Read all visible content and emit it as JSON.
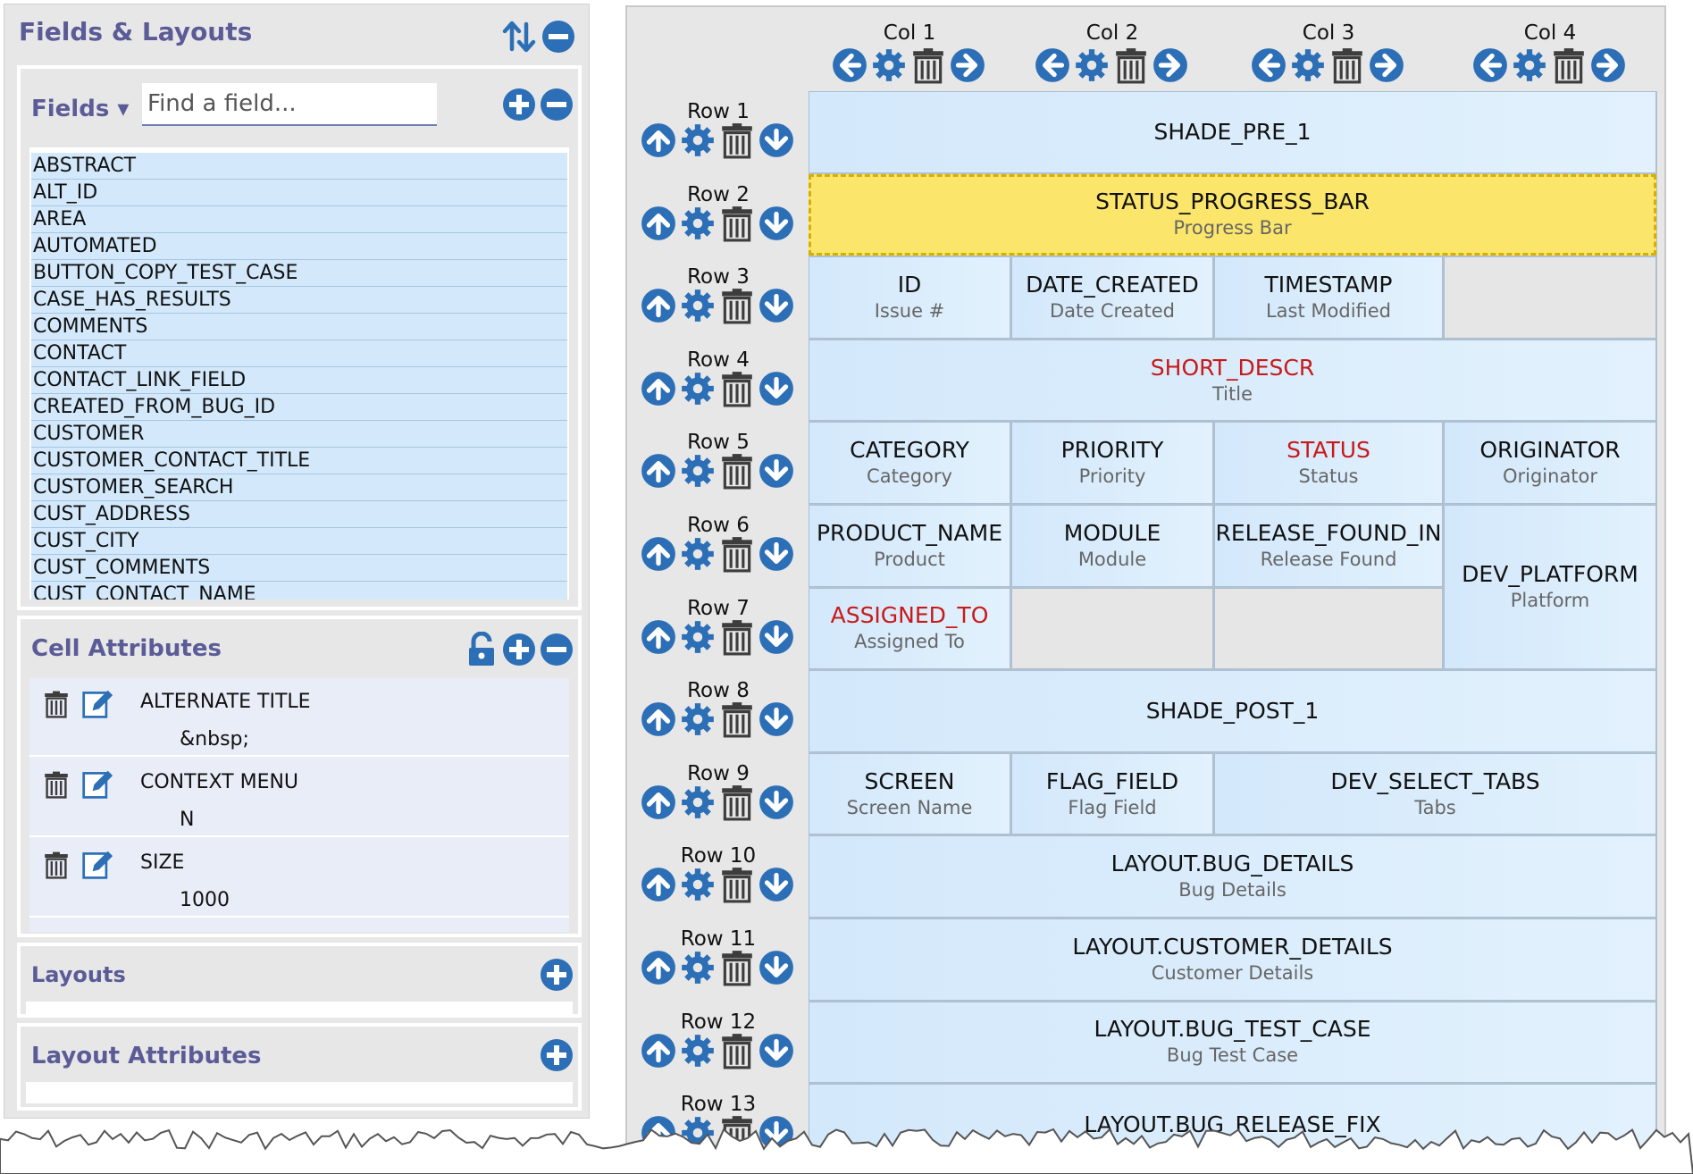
{
  "left_panel": {
    "title": "Fields & Layouts",
    "fields": {
      "dropdown_label": "Fields ▾",
      "search_placeholder": "Find a field...",
      "items": [
        "ABSTRACT",
        "ALT_ID",
        "AREA",
        "AUTOMATED",
        "BUTTON_COPY_TEST_CASE",
        "CASE_HAS_RESULTS",
        "COMMENTS",
        "CONTACT",
        "CONTACT_LINK_FIELD",
        "CREATED_FROM_BUG_ID",
        "CUSTOMER",
        "CUSTOMER_CONTACT_TITLE",
        "CUSTOMER_SEARCH",
        "CUST_ADDRESS",
        "CUST_CITY",
        "CUST_COMMENTS",
        "CUST_CONTACT_NAME"
      ]
    },
    "cell_attributes": {
      "title": "Cell Attributes",
      "items": [
        {
          "name": "ALTERNATE TITLE",
          "value": "&nbsp;"
        },
        {
          "name": "CONTEXT MENU",
          "value": "N"
        },
        {
          "name": "SIZE",
          "value": "1000"
        }
      ]
    },
    "layouts": {
      "title": "Layouts"
    },
    "layout_attributes": {
      "title": "Layout Attributes"
    }
  },
  "grid": {
    "columns": [
      "Col 1",
      "Col 2",
      "Col 3",
      "Col 4"
    ],
    "rows": [
      "Row 1",
      "Row 2",
      "Row 3",
      "Row 4",
      "Row 5",
      "Row 6",
      "Row 7",
      "Row 8",
      "Row 9",
      "Row 10",
      "Row 11",
      "Row 12",
      "Row 13"
    ],
    "cells": [
      {
        "row": 1,
        "col": 1,
        "colspan": 4,
        "rowspan": 1,
        "name": "SHADE_PRE_1",
        "subtitle": ""
      },
      {
        "row": 2,
        "col": 1,
        "colspan": 4,
        "rowspan": 1,
        "name": "STATUS_PROGRESS_BAR",
        "subtitle": "Progress Bar",
        "selected": true
      },
      {
        "row": 3,
        "col": 1,
        "colspan": 1,
        "rowspan": 1,
        "name": "ID",
        "subtitle": "Issue #"
      },
      {
        "row": 3,
        "col": 2,
        "colspan": 1,
        "rowspan": 1,
        "name": "DATE_CREATED",
        "subtitle": "Date Created"
      },
      {
        "row": 3,
        "col": 3,
        "colspan": 1,
        "rowspan": 1,
        "name": "TIMESTAMP",
        "subtitle": "Last Modified"
      },
      {
        "row": 3,
        "col": 4,
        "colspan": 1,
        "rowspan": 1,
        "name": "",
        "subtitle": "",
        "empty": true
      },
      {
        "row": 4,
        "col": 1,
        "colspan": 4,
        "rowspan": 1,
        "name": "SHORT_DESCR",
        "subtitle": "Title",
        "required": true
      },
      {
        "row": 5,
        "col": 1,
        "colspan": 1,
        "rowspan": 1,
        "name": "CATEGORY",
        "subtitle": "Category"
      },
      {
        "row": 5,
        "col": 2,
        "colspan": 1,
        "rowspan": 1,
        "name": "PRIORITY",
        "subtitle": "Priority"
      },
      {
        "row": 5,
        "col": 3,
        "colspan": 1,
        "rowspan": 1,
        "name": "STATUS",
        "subtitle": "Status",
        "required": true
      },
      {
        "row": 5,
        "col": 4,
        "colspan": 1,
        "rowspan": 1,
        "name": "ORIGINATOR",
        "subtitle": "Originator"
      },
      {
        "row": 6,
        "col": 1,
        "colspan": 1,
        "rowspan": 1,
        "name": "PRODUCT_NAME",
        "subtitle": "Product"
      },
      {
        "row": 6,
        "col": 2,
        "colspan": 1,
        "rowspan": 1,
        "name": "MODULE",
        "subtitle": "Module"
      },
      {
        "row": 6,
        "col": 3,
        "colspan": 1,
        "rowspan": 1,
        "name": "RELEASE_FOUND_IN",
        "subtitle": "Release Found"
      },
      {
        "row": 6,
        "col": 4,
        "colspan": 1,
        "rowspan": 2,
        "name": "DEV_PLATFORM",
        "subtitle": "Platform"
      },
      {
        "row": 7,
        "col": 1,
        "colspan": 1,
        "rowspan": 1,
        "name": "ASSIGNED_TO",
        "subtitle": "Assigned To",
        "required": true
      },
      {
        "row": 7,
        "col": 2,
        "colspan": 1,
        "rowspan": 1,
        "name": "",
        "subtitle": "",
        "empty": true
      },
      {
        "row": 7,
        "col": 3,
        "colspan": 1,
        "rowspan": 1,
        "name": "",
        "subtitle": "",
        "empty": true
      },
      {
        "row": 8,
        "col": 1,
        "colspan": 4,
        "rowspan": 1,
        "name": "SHADE_POST_1",
        "subtitle": ""
      },
      {
        "row": 9,
        "col": 1,
        "colspan": 1,
        "rowspan": 1,
        "name": "SCREEN",
        "subtitle": "Screen Name"
      },
      {
        "row": 9,
        "col": 2,
        "colspan": 1,
        "rowspan": 1,
        "name": "FLAG_FIELD",
        "subtitle": "Flag Field"
      },
      {
        "row": 9,
        "col": 3,
        "colspan": 2,
        "rowspan": 1,
        "name": "DEV_SELECT_TABS",
        "subtitle": "Tabs"
      },
      {
        "row": 10,
        "col": 1,
        "colspan": 4,
        "rowspan": 1,
        "name": "LAYOUT.BUG_DETAILS",
        "subtitle": "Bug Details"
      },
      {
        "row": 11,
        "col": 1,
        "colspan": 4,
        "rowspan": 1,
        "name": "LAYOUT.CUSTOMER_DETAILS",
        "subtitle": "Customer Details"
      },
      {
        "row": 12,
        "col": 1,
        "colspan": 4,
        "rowspan": 1,
        "name": "LAYOUT.BUG_TEST_CASE",
        "subtitle": "Bug Test Case"
      },
      {
        "row": 13,
        "col": 1,
        "colspan": 4,
        "rowspan": 1,
        "name": "LAYOUT.BUG_RELEASE_FIX",
        "subtitle": ""
      }
    ]
  },
  "colors": {
    "accent": "#2c6fb6",
    "heading": "#5b5b97",
    "required": "#c81a1a",
    "selected": "#fbe56b"
  }
}
